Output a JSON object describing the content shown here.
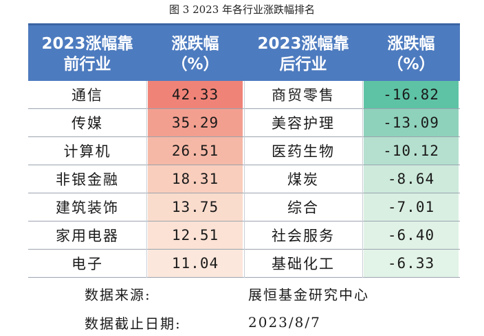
{
  "caption": "图 3   2023 年各行业涨跌幅排名",
  "header": {
    "top_industry": "2023涨幅靠\n前行业",
    "top_change": "涨跌幅\n（%）",
    "bottom_industry": "2023涨幅靠\n后行业",
    "bottom_change": "涨跌幅\n（%）"
  },
  "rows": [
    {
      "top_name": "通信",
      "top_value": "42.33",
      "bottom_name": "商贸零售",
      "bottom_value": "-16.82"
    },
    {
      "top_name": "传媒",
      "top_value": "35.29",
      "bottom_name": "美容护理",
      "bottom_value": "-13.09"
    },
    {
      "top_name": "计算机",
      "top_value": "26.51",
      "bottom_name": "医药生物",
      "bottom_value": "-10.12"
    },
    {
      "top_name": "非银金融",
      "top_value": "18.31",
      "bottom_name": "煤炭",
      "bottom_value": "-8.64"
    },
    {
      "top_name": "建筑装饰",
      "top_value": "13.75",
      "bottom_name": "综合",
      "bottom_value": "-7.01"
    },
    {
      "top_name": "家用电器",
      "top_value": "12.51",
      "bottom_name": "社会服务",
      "bottom_value": "-6.40"
    },
    {
      "top_name": "电子",
      "top_value": "11.04",
      "bottom_name": "基础化工",
      "bottom_value": "-6.33"
    }
  ],
  "colors": {
    "header_bg": "#4d7bbf",
    "top_heat": [
      "#f08378",
      "#f39f90",
      "#f6b8a6",
      "#f9cebd",
      "#fadccd",
      "#fbe2d5",
      "#fce7dc"
    ],
    "bottom_heat": [
      "#5ec3a5",
      "#8fd2bc",
      "#b5e0cf",
      "#cdeadb",
      "#d9efe2",
      "#e0f2e6",
      "#e2f3e7"
    ]
  },
  "footer": {
    "source_label": "数据来源:",
    "source_value": "展恒基金研究中心",
    "date_label": "数据截止日期:",
    "date_value": "2023/8/7"
  }
}
